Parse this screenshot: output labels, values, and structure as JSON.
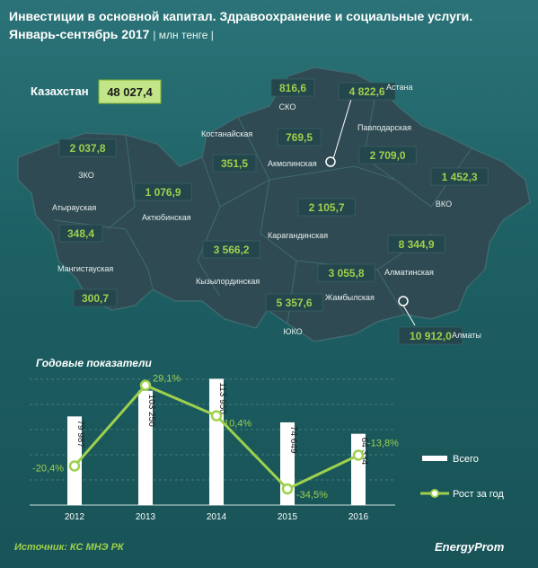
{
  "title_line1": "Инвестиции в основной капитал. Здравоохранение и социальные услуги.",
  "title_line2": "Январь-сентябрь 2017",
  "unit": "| млн тенге |",
  "kazakhstan": {
    "label": "Казахстан",
    "value": "48 027,4"
  },
  "regions": [
    {
      "name": "СКО",
      "value": "816,6"
    },
    {
      "name": "Астана",
      "value": "4 822,6"
    },
    {
      "name": "Павлодарская",
      "value": "2 709,0"
    },
    {
      "name": "Костанайская",
      "value": "351,5"
    },
    {
      "name": "Акмолинская",
      "value": "769,5"
    },
    {
      "name": "ЗКО",
      "value": "2 037,8"
    },
    {
      "name": "ВКО",
      "value": "1 452,3"
    },
    {
      "name": "Актюбинская",
      "value": "1 076,9"
    },
    {
      "name": "Атырауская",
      "value": "348,4"
    },
    {
      "name": "Карагандинская",
      "value": "2 105,7"
    },
    {
      "name": "Мангистауская",
      "value": "300,7"
    },
    {
      "name": "Кызылординская",
      "value": "3 566,2"
    },
    {
      "name": "Алматинская",
      "value": "8 344,9"
    },
    {
      "name": "Жамбылская",
      "value": "3 055,8"
    },
    {
      "name": "ЮКО",
      "value": "5 357,6"
    },
    {
      "name": "Алматы",
      "value": "10 912,0"
    }
  ],
  "colors": {
    "accent": "#9ed04d",
    "background": "#1f6367",
    "bar": "#ffffff",
    "map": "#2f4a52"
  },
  "chart_data": {
    "type": "bar+line",
    "title": "Годовые показатели",
    "categories": [
      "2012",
      "2013",
      "2014",
      "2015",
      "2016"
    ],
    "series": [
      {
        "name": "Всего",
        "type": "bar",
        "values": [
          79987,
          103250,
          113950,
          74649,
          64334
        ],
        "labels": [
          "79 987",
          "103 250",
          "113 950",
          "74 649",
          "64 334"
        ]
      },
      {
        "name": "Рост за год",
        "type": "line",
        "values": [
          -20.4,
          29.1,
          10.4,
          -34.5,
          -13.8
        ],
        "labels": [
          "-20,4%",
          "29,1%",
          "10,4%",
          "-34,5%",
          "-13,8%"
        ]
      }
    ],
    "grid": "horizontal dashed",
    "legend": "right"
  },
  "source": "Источник: КС МНЭ РК",
  "logo": "EnergyProm"
}
